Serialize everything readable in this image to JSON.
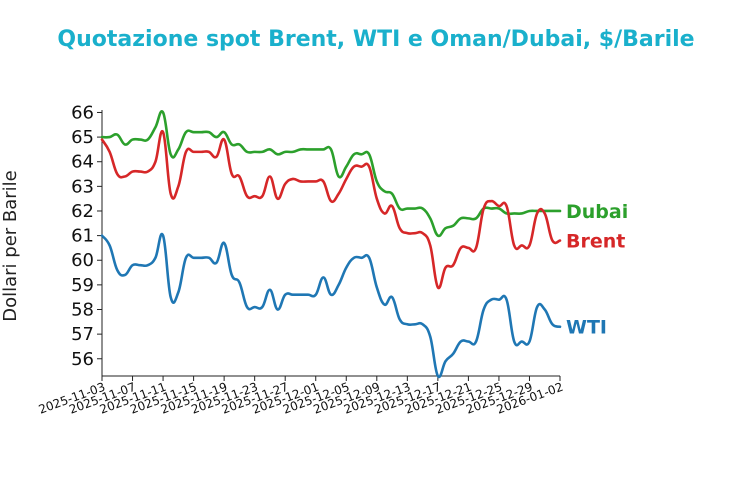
{
  "chart_data": {
    "type": "line",
    "title": "Quotazione spot Brent, WTI e Oman/Dubai, $/Barile",
    "title_color": "#1ab0cc",
    "ylabel": "Dollari per Barile",
    "xlabel": "",
    "ylim": [
      55.3,
      66.1
    ],
    "yticks": [
      56,
      57,
      58,
      59,
      60,
      61,
      62,
      63,
      64,
      65,
      66
    ],
    "x_start": "2025-11-03",
    "x_end": "2026-01-02",
    "xtick_labels": [
      "2025-11-03",
      "2025-11-07",
      "2025-11-11",
      "2025-11-15",
      "2025-11-19",
      "2025-11-23",
      "2025-11-27",
      "2025-12-01",
      "2025-12-05",
      "2025-12-09",
      "2025-12-13",
      "2025-12-17",
      "2025-12-21",
      "2025-12-25",
      "2025-12-29",
      "2026-01-02"
    ],
    "grid": false,
    "legend": "inline labels at right end of lines",
    "series": [
      {
        "name": "Dubai",
        "color": "#2ca02c",
        "points": [
          [
            "2025-11-03",
            65.0
          ],
          [
            "2025-11-04",
            65.0
          ],
          [
            "2025-11-05",
            65.1
          ],
          [
            "2025-11-06",
            64.7
          ],
          [
            "2025-11-07",
            64.9
          ],
          [
            "2025-11-08",
            64.9
          ],
          [
            "2025-11-09",
            64.9
          ],
          [
            "2025-11-10",
            65.4
          ],
          [
            "2025-11-11",
            66.0
          ],
          [
            "2025-11-12",
            64.3
          ],
          [
            "2025-11-13",
            64.5
          ],
          [
            "2025-11-14",
            65.2
          ],
          [
            "2025-11-15",
            65.2
          ],
          [
            "2025-11-16",
            65.2
          ],
          [
            "2025-11-17",
            65.2
          ],
          [
            "2025-11-18",
            65.0
          ],
          [
            "2025-11-19",
            65.2
          ],
          [
            "2025-11-20",
            64.7
          ],
          [
            "2025-11-21",
            64.7
          ],
          [
            "2025-11-22",
            64.4
          ],
          [
            "2025-11-23",
            64.4
          ],
          [
            "2025-11-24",
            64.4
          ],
          [
            "2025-11-25",
            64.5
          ],
          [
            "2025-11-26",
            64.3
          ],
          [
            "2025-11-27",
            64.4
          ],
          [
            "2025-11-28",
            64.4
          ],
          [
            "2025-11-29",
            64.5
          ],
          [
            "2025-11-30",
            64.5
          ],
          [
            "2025-12-01",
            64.5
          ],
          [
            "2025-12-02",
            64.5
          ],
          [
            "2025-12-03",
            64.5
          ],
          [
            "2025-12-04",
            63.4
          ],
          [
            "2025-12-05",
            63.8
          ],
          [
            "2025-12-06",
            64.3
          ],
          [
            "2025-12-07",
            64.3
          ],
          [
            "2025-12-08",
            64.3
          ],
          [
            "2025-12-09",
            63.2
          ],
          [
            "2025-12-10",
            62.8
          ],
          [
            "2025-12-11",
            62.7
          ],
          [
            "2025-12-12",
            62.1
          ],
          [
            "2025-12-13",
            62.1
          ],
          [
            "2025-12-14",
            62.1
          ],
          [
            "2025-12-15",
            62.1
          ],
          [
            "2025-12-16",
            61.7
          ],
          [
            "2025-12-17",
            61.0
          ],
          [
            "2025-12-18",
            61.3
          ],
          [
            "2025-12-19",
            61.4
          ],
          [
            "2025-12-20",
            61.7
          ],
          [
            "2025-12-21",
            61.7
          ],
          [
            "2025-12-22",
            61.7
          ],
          [
            "2025-12-23",
            62.1
          ],
          [
            "2025-12-24",
            62.1
          ],
          [
            "2025-12-25",
            62.1
          ],
          [
            "2025-12-26",
            61.9
          ],
          [
            "2025-12-27",
            61.9
          ],
          [
            "2025-12-28",
            61.9
          ],
          [
            "2025-12-29",
            62.0
          ],
          [
            "2025-12-30",
            62.0
          ],
          [
            "2025-12-31",
            62.0
          ],
          [
            "2026-01-01",
            62.0
          ],
          [
            "2026-01-02",
            62.0
          ]
        ]
      },
      {
        "name": "Brent",
        "color": "#d62728",
        "points": [
          [
            "2025-11-03",
            64.9
          ],
          [
            "2025-11-04",
            64.4
          ],
          [
            "2025-11-05",
            63.5
          ],
          [
            "2025-11-06",
            63.4
          ],
          [
            "2025-11-07",
            63.6
          ],
          [
            "2025-11-08",
            63.6
          ],
          [
            "2025-11-09",
            63.6
          ],
          [
            "2025-11-10",
            64.0
          ],
          [
            "2025-11-11",
            65.2
          ],
          [
            "2025-11-12",
            62.7
          ],
          [
            "2025-11-13",
            63.0
          ],
          [
            "2025-11-14",
            64.4
          ],
          [
            "2025-11-15",
            64.4
          ],
          [
            "2025-11-16",
            64.4
          ],
          [
            "2025-11-17",
            64.4
          ],
          [
            "2025-11-18",
            64.2
          ],
          [
            "2025-11-19",
            64.9
          ],
          [
            "2025-11-20",
            63.5
          ],
          [
            "2025-11-21",
            63.4
          ],
          [
            "2025-11-22",
            62.6
          ],
          [
            "2025-11-23",
            62.6
          ],
          [
            "2025-11-24",
            62.6
          ],
          [
            "2025-11-25",
            63.4
          ],
          [
            "2025-11-26",
            62.5
          ],
          [
            "2025-11-27",
            63.1
          ],
          [
            "2025-11-28",
            63.3
          ],
          [
            "2025-11-29",
            63.2
          ],
          [
            "2025-11-30",
            63.2
          ],
          [
            "2025-12-01",
            63.2
          ],
          [
            "2025-12-02",
            63.2
          ],
          [
            "2025-12-03",
            62.4
          ],
          [
            "2025-12-04",
            62.7
          ],
          [
            "2025-12-05",
            63.3
          ],
          [
            "2025-12-06",
            63.8
          ],
          [
            "2025-12-07",
            63.8
          ],
          [
            "2025-12-08",
            63.8
          ],
          [
            "2025-12-09",
            62.5
          ],
          [
            "2025-12-10",
            61.9
          ],
          [
            "2025-12-11",
            62.2
          ],
          [
            "2025-12-12",
            61.3
          ],
          [
            "2025-12-13",
            61.1
          ],
          [
            "2025-12-14",
            61.1
          ],
          [
            "2025-12-15",
            61.1
          ],
          [
            "2025-12-16",
            60.6
          ],
          [
            "2025-12-17",
            58.9
          ],
          [
            "2025-12-18",
            59.7
          ],
          [
            "2025-12-19",
            59.8
          ],
          [
            "2025-12-20",
            60.5
          ],
          [
            "2025-12-21",
            60.5
          ],
          [
            "2025-12-22",
            60.5
          ],
          [
            "2025-12-23",
            62.1
          ],
          [
            "2025-12-24",
            62.4
          ],
          [
            "2025-12-25",
            62.2
          ],
          [
            "2025-12-26",
            62.2
          ],
          [
            "2025-12-27",
            60.6
          ],
          [
            "2025-12-28",
            60.6
          ],
          [
            "2025-12-29",
            60.6
          ],
          [
            "2025-12-30",
            61.9
          ],
          [
            "2025-12-31",
            61.9
          ],
          [
            "2026-01-01",
            60.8
          ],
          [
            "2026-01-02",
            60.8
          ]
        ]
      },
      {
        "name": "WTI",
        "color": "#1f77b4",
        "points": [
          [
            "2025-11-03",
            61.0
          ],
          [
            "2025-11-04",
            60.6
          ],
          [
            "2025-11-05",
            59.6
          ],
          [
            "2025-11-06",
            59.4
          ],
          [
            "2025-11-07",
            59.8
          ],
          [
            "2025-11-08",
            59.8
          ],
          [
            "2025-11-09",
            59.8
          ],
          [
            "2025-11-10",
            60.1
          ],
          [
            "2025-11-11",
            61.0
          ],
          [
            "2025-11-12",
            58.5
          ],
          [
            "2025-11-13",
            58.7
          ],
          [
            "2025-11-14",
            60.1
          ],
          [
            "2025-11-15",
            60.1
          ],
          [
            "2025-11-16",
            60.1
          ],
          [
            "2025-11-17",
            60.1
          ],
          [
            "2025-11-18",
            59.9
          ],
          [
            "2025-11-19",
            60.7
          ],
          [
            "2025-11-20",
            59.4
          ],
          [
            "2025-11-21",
            59.1
          ],
          [
            "2025-11-22",
            58.1
          ],
          [
            "2025-11-23",
            58.1
          ],
          [
            "2025-11-24",
            58.1
          ],
          [
            "2025-11-25",
            58.8
          ],
          [
            "2025-11-26",
            58.0
          ],
          [
            "2025-11-27",
            58.6
          ],
          [
            "2025-11-28",
            58.6
          ],
          [
            "2025-11-29",
            58.6
          ],
          [
            "2025-11-30",
            58.6
          ],
          [
            "2025-12-01",
            58.6
          ],
          [
            "2025-12-02",
            59.3
          ],
          [
            "2025-12-03",
            58.6
          ],
          [
            "2025-12-04",
            59.0
          ],
          [
            "2025-12-05",
            59.7
          ],
          [
            "2025-12-06",
            60.1
          ],
          [
            "2025-12-07",
            60.1
          ],
          [
            "2025-12-08",
            60.1
          ],
          [
            "2025-12-09",
            58.9
          ],
          [
            "2025-12-10",
            58.2
          ],
          [
            "2025-12-11",
            58.5
          ],
          [
            "2025-12-12",
            57.6
          ],
          [
            "2025-12-13",
            57.4
          ],
          [
            "2025-12-14",
            57.4
          ],
          [
            "2025-12-15",
            57.4
          ],
          [
            "2025-12-16",
            56.9
          ],
          [
            "2025-12-17",
            55.3
          ],
          [
            "2025-12-18",
            55.9
          ],
          [
            "2025-12-19",
            56.2
          ],
          [
            "2025-12-20",
            56.7
          ],
          [
            "2025-12-21",
            56.7
          ],
          [
            "2025-12-22",
            56.7
          ],
          [
            "2025-12-23",
            58.0
          ],
          [
            "2025-12-24",
            58.4
          ],
          [
            "2025-12-25",
            58.4
          ],
          [
            "2025-12-26",
            58.4
          ],
          [
            "2025-12-27",
            56.7
          ],
          [
            "2025-12-28",
            56.7
          ],
          [
            "2025-12-29",
            56.7
          ],
          [
            "2025-12-30",
            58.1
          ],
          [
            "2025-12-31",
            58.0
          ],
          [
            "2026-01-01",
            57.4
          ],
          [
            "2026-01-02",
            57.3
          ]
        ]
      }
    ]
  }
}
